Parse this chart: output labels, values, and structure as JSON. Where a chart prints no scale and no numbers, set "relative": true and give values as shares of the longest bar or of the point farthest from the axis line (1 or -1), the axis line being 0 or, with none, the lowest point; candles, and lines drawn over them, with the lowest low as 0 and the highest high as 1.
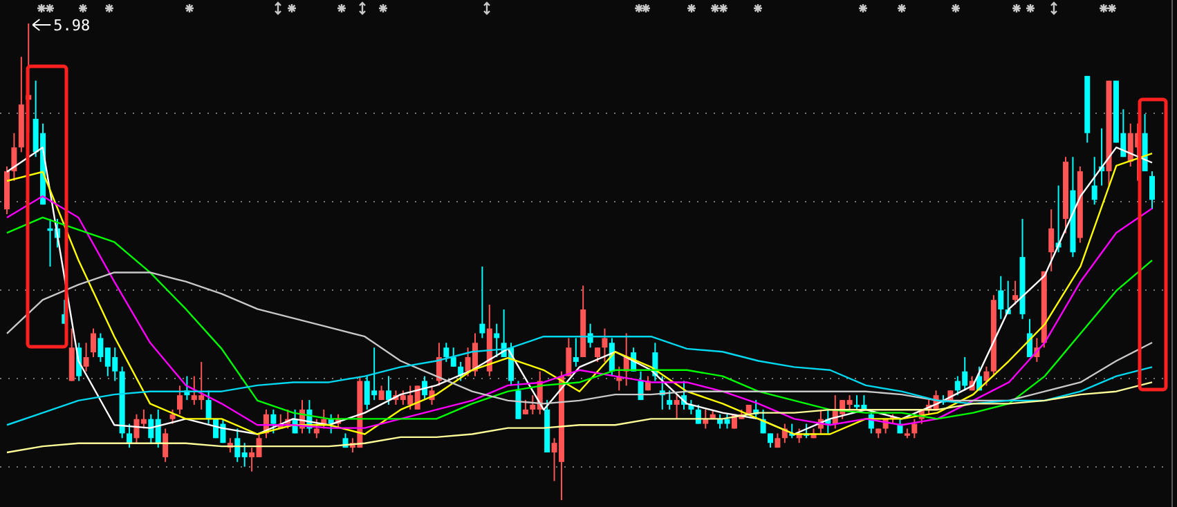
{
  "chart_data": [
    {
      "type": "candlestick",
      "relative": true,
      "grid": true,
      "categories": [
        null,
        null,
        null,
        null,
        null,
        null,
        null,
        null,
        null,
        null,
        null,
        null,
        null,
        null,
        null,
        null,
        null,
        null,
        null,
        null,
        null,
        null,
        null,
        null,
        null,
        null,
        null,
        null,
        null,
        null,
        null,
        null,
        null,
        null,
        null,
        null,
        null,
        null,
        null,
        null,
        null,
        null,
        null,
        null,
        null,
        null,
        null,
        null,
        null,
        null,
        null,
        null,
        null,
        null,
        null,
        null,
        null,
        null,
        null,
        null,
        null,
        null,
        null,
        null,
        null,
        null,
        null,
        null,
        null,
        null,
        null,
        null,
        null,
        null,
        null,
        null,
        null,
        null,
        null,
        null,
        null,
        null,
        null,
        null,
        null,
        null,
        null,
        null,
        null,
        null,
        null,
        null,
        null,
        null,
        null,
        null,
        null,
        null,
        null,
        null,
        null,
        null,
        null,
        null,
        null,
        null,
        null,
        null,
        null,
        null,
        null,
        null,
        null,
        null,
        null,
        null,
        null,
        null,
        null,
        null,
        null,
        null,
        null,
        null,
        null,
        null,
        null,
        null,
        null,
        null,
        null,
        null,
        null,
        null,
        null,
        null,
        null,
        null,
        null,
        null,
        null,
        null,
        null,
        null,
        null,
        null,
        null,
        null,
        null,
        null,
        null,
        null,
        null,
        null,
        null,
        null,
        null,
        null,
        null,
        null
      ],
      "ohlc": [
        [
          0.61,
          0.7,
          0.6,
          0.69
        ],
        [
          0.69,
          0.77,
          0.67,
          0.74
        ],
        [
          0.74,
          0.93,
          0.73,
          0.83
        ],
        [
          0.84,
          1,
          0.77,
          0.85
        ],
        [
          0.8,
          0.88,
          0.72,
          0.73
        ],
        [
          0.77,
          0.79,
          0.62,
          0.62
        ],
        [
          0.57,
          0.59,
          0.49,
          0.565
        ],
        [
          0.57,
          0.59,
          0.53,
          0.55
        ],
        [
          0.39,
          0.42,
          0.37,
          0.37
        ],
        [
          0.25,
          0.36,
          0.25,
          0.32
        ],
        [
          0.32,
          0.33,
          0.25,
          0.26
        ],
        [
          0.28,
          0.33,
          0.27,
          0.3
        ],
        [
          0.31,
          0.36,
          0.3,
          0.35
        ],
        [
          0.34,
          0.35,
          0.29,
          0.3
        ],
        [
          0.32,
          0.32,
          0.26,
          0.28
        ],
        [
          0.3,
          0.32,
          0.25,
          0.27
        ],
        [
          0.27,
          0.28,
          0.13,
          0.14
        ],
        [
          0.14,
          0.16,
          0.11,
          0.12
        ],
        [
          0.13,
          0.18,
          0.12,
          0.17
        ],
        [
          0.16,
          0.19,
          0.15,
          0.17
        ],
        [
          0.17,
          0.18,
          0.12,
          0.13
        ],
        [
          0.17,
          0.19,
          0.11,
          0.12
        ],
        [
          0.09,
          0.15,
          0.08,
          0.14
        ],
        [
          0.17,
          0.19,
          0.16,
          0.18
        ],
        [
          0.19,
          0.24,
          0.18,
          0.22
        ],
        [
          0.23,
          0.26,
          0.21,
          0.22
        ],
        [
          0.21,
          0.26,
          0.2,
          0.22
        ],
        [
          0.21,
          0.29,
          0.19,
          0.22
        ],
        [
          0.21,
          0.23,
          0.16,
          0.17
        ],
        [
          0.17,
          0.17,
          0.13,
          0.13
        ],
        [
          0.16,
          0.17,
          0.12,
          0.12
        ],
        [
          0.11,
          0.13,
          0.1,
          0.12
        ],
        [
          0.13,
          0.15,
          0.08,
          0.09
        ],
        [
          0.1,
          0.12,
          0.07,
          0.09
        ],
        [
          0.09,
          0.11,
          0.06,
          0.1
        ],
        [
          0.09,
          0.14,
          0.09,
          0.13
        ],
        [
          0.14,
          0.19,
          0.13,
          0.18
        ],
        [
          0.18,
          0.19,
          0.14,
          0.16
        ],
        [
          0.15,
          0.18,
          0.15,
          0.16
        ],
        [
          0.16,
          0.19,
          0.15,
          0.17
        ],
        [
          0.17,
          0.19,
          0.14,
          0.14
        ],
        [
          0.15,
          0.21,
          0.14,
          0.19
        ],
        [
          0.19,
          0.21,
          0.14,
          0.15
        ],
        [
          0.14,
          0.17,
          0.13,
          0.15
        ],
        [
          0.16,
          0.19,
          0.15,
          0.17
        ],
        [
          0.17,
          0.18,
          0.14,
          0.16
        ],
        [
          0.16,
          0.18,
          0.15,
          0.17
        ],
        [
          0.13,
          0.14,
          0.11,
          0.11
        ],
        [
          0.11,
          0.13,
          0.1,
          0.12
        ],
        [
          0.11,
          0.26,
          0.11,
          0.25
        ],
        [
          0.25,
          0.26,
          0.19,
          0.2
        ],
        [
          0.23,
          0.32,
          0.21,
          0.22
        ],
        [
          0.21,
          0.24,
          0.21,
          0.23
        ],
        [
          0.23,
          0.26,
          0.2,
          0.21
        ],
        [
          0.21,
          0.23,
          0.2,
          0.22
        ],
        [
          0.21,
          0.23,
          0.2,
          0.22
        ],
        [
          0.2,
          0.24,
          0.19,
          0.22
        ],
        [
          0.19,
          0.24,
          0.19,
          0.24
        ],
        [
          0.25,
          0.26,
          0.21,
          0.22
        ],
        [
          0.21,
          0.24,
          0.2,
          0.23
        ],
        [
          0.25,
          0.33,
          0.24,
          0.3
        ],
        [
          0.32,
          0.33,
          0.29,
          0.3
        ],
        [
          0.3,
          0.32,
          0.28,
          0.28
        ],
        [
          0.28,
          0.29,
          0.25,
          0.26
        ],
        [
          0.27,
          0.32,
          0.26,
          0.3
        ],
        [
          0.27,
          0.35,
          0.26,
          0.33
        ],
        [
          0.37,
          0.49,
          0.34,
          0.35
        ],
        [
          0.27,
          0.41,
          0.26,
          0.36
        ],
        [
          0.35,
          0.37,
          0.3,
          0.34
        ],
        [
          0.33,
          0.4,
          0.3,
          0.3
        ],
        [
          0.32,
          0.33,
          0.24,
          0.25
        ],
        [
          0.23,
          0.25,
          0.17,
          0.17
        ],
        [
          0.18,
          0.21,
          0.18,
          0.19
        ],
        [
          0.19,
          0.22,
          0.18,
          0.2
        ],
        [
          0.19,
          0.27,
          0.18,
          0.25
        ],
        [
          0.19,
          0.21,
          0.1,
          0.1
        ],
        [
          0.1,
          0.13,
          0.04,
          0.12
        ],
        [
          0.08,
          0.27,
          0,
          0.26
        ],
        [
          0.26,
          0.34,
          0.26,
          0.32
        ],
        [
          0.3,
          0.34,
          0.28,
          0.29
        ],
        [
          0.3,
          0.45,
          0.3,
          0.4
        ],
        [
          0.35,
          0.37,
          0.32,
          0.33
        ],
        [
          0.3,
          0.32,
          0.29,
          0.32
        ],
        [
          0.32,
          0.36,
          0.29,
          0.34
        ],
        [
          0.33,
          0.34,
          0.26,
          0.27
        ],
        [
          0.25,
          0.28,
          0.23,
          0.26
        ],
        [
          0.27,
          0.35,
          0.24,
          0.3
        ],
        [
          0.31,
          0.32,
          0.27,
          0.27
        ],
        [
          0.25,
          0.27,
          0.21,
          0.21
        ],
        [
          0.23,
          0.26,
          0.23,
          0.25
        ],
        [
          0.31,
          0.33,
          0.25,
          0.26
        ],
        [
          0.23,
          0.26,
          0.19,
          0.22
        ],
        [
          0.21,
          0.23,
          0.19,
          0.2
        ],
        [
          0.2,
          0.22,
          0.17,
          0.21
        ],
        [
          0.22,
          0.25,
          0.19,
          0.2
        ],
        [
          0.2,
          0.21,
          0.18,
          0.19
        ],
        [
          0.19,
          0.2,
          0.16,
          0.16
        ],
        [
          0.16,
          0.19,
          0.15,
          0.17
        ],
        [
          0.17,
          0.19,
          0.17,
          0.18
        ],
        [
          0.17,
          0.18,
          0.15,
          0.16
        ],
        [
          0.17,
          0.18,
          0.15,
          0.16
        ],
        [
          0.15,
          0.18,
          0.15,
          0.18
        ],
        [
          0.17,
          0.19,
          0.17,
          0.18
        ],
        [
          0.18,
          0.2,
          0.18,
          0.2
        ],
        [
          0.19,
          0.21,
          0.17,
          0.18
        ],
        [
          0.17,
          0.19,
          0.14,
          0.14
        ],
        [
          0.14,
          0.14,
          0.11,
          0.12
        ],
        [
          0.11,
          0.14,
          0.11,
          0.13
        ],
        [
          0.13,
          0.16,
          0.12,
          0.15
        ],
        [
          0.14,
          0.16,
          0.13,
          0.135
        ],
        [
          0.13,
          0.15,
          0.12,
          0.14
        ],
        [
          0.14,
          0.16,
          0.13,
          0.135
        ],
        [
          0.13,
          0.15,
          0.13,
          0.14
        ],
        [
          0.15,
          0.19,
          0.14,
          0.17
        ],
        [
          0.17,
          0.19,
          0.14,
          0.16
        ],
        [
          0.16,
          0.22,
          0.15,
          0.19
        ],
        [
          0.18,
          0.21,
          0.17,
          0.21
        ],
        [
          0.2,
          0.22,
          0.19,
          0.21
        ],
        [
          0.2,
          0.22,
          0.19,
          0.195
        ],
        [
          0.2,
          0.22,
          0.19,
          0.19
        ],
        [
          0.18,
          0.19,
          0.14,
          0.15
        ],
        [
          0.14,
          0.15,
          0.13,
          0.15
        ],
        [
          0.15,
          0.17,
          0.14,
          0.17
        ],
        [
          0.17,
          0.18,
          0.16,
          0.175
        ],
        [
          0.16,
          0.17,
          0.14,
          0.14
        ],
        [
          0.135,
          0.15,
          0.13,
          0.14
        ],
        [
          0.14,
          0.17,
          0.13,
          0.16
        ],
        [
          0.17,
          0.19,
          0.16,
          0.19
        ],
        [
          0.19,
          0.21,
          0.18,
          0.2
        ],
        [
          0.19,
          0.23,
          0.19,
          0.22
        ],
        [
          0.21,
          0.22,
          0.2,
          0.205
        ],
        [
          0.21,
          0.23,
          0.21,
          0.23
        ],
        [
          0.25,
          0.26,
          0.22,
          0.23
        ],
        [
          0.27,
          0.3,
          0.23,
          0.24
        ],
        [
          0.23,
          0.26,
          0.23,
          0.25
        ],
        [
          0.26,
          0.28,
          0.23,
          0.23
        ],
        [
          0.25,
          0.28,
          0.24,
          0.27
        ],
        [
          0.27,
          0.43,
          0.26,
          0.42
        ],
        [
          0.44,
          0.47,
          0.38,
          0.4
        ],
        [
          0.4,
          0.46,
          0.39,
          0.39
        ],
        [
          0.42,
          0.46,
          0.41,
          0.43
        ],
        [
          0.51,
          0.59,
          0.38,
          0.39
        ],
        [
          0.35,
          0.38,
          0.3,
          0.3
        ],
        [
          0.3,
          0.34,
          0.29,
          0.32
        ],
        [
          0.33,
          0.48,
          0.32,
          0.48
        ],
        [
          0.52,
          0.61,
          0.48,
          0.57
        ],
        [
          0.54,
          0.66,
          0.52,
          0.53
        ],
        [
          0.59,
          0.72,
          0.56,
          0.71
        ],
        [
          0.65,
          0.72,
          0.51,
          0.52
        ],
        [
          0.55,
          0.7,
          0.54,
          0.69
        ],
        [
          0.89,
          0.89,
          0.75,
          0.77
        ],
        [
          0.66,
          0.72,
          0.62,
          0.63
        ],
        [
          0.7,
          0.78,
          0.66,
          0.69
        ],
        [
          0.69,
          0.88,
          0.66,
          0.88
        ],
        [
          0.88,
          0.88,
          0.75,
          0.75
        ],
        [
          0.77,
          0.82,
          0.72,
          0.72
        ],
        [
          0.71,
          0.79,
          0.7,
          0.77
        ],
        [
          0.74,
          0.79,
          0.67,
          0.77
        ],
        [
          0.77,
          0.81,
          0.69,
          0.69
        ],
        [
          0.68,
          0.69,
          0.61,
          0.63
        ]
      ],
      "annotations": [
        "5.98"
      ]
    },
    {
      "type": "line",
      "relative": true,
      "categories": [
        null,
        null,
        null,
        null,
        null,
        null,
        null,
        null,
        null,
        null,
        null,
        null,
        null,
        null,
        null,
        null,
        null,
        null,
        null,
        null,
        null,
        null,
        null,
        null,
        null,
        null,
        null,
        null,
        null,
        null,
        null,
        null,
        null
      ],
      "series": [
        {
          "color": "#ffffff",
          "values": [
            0.92,
            1,
            0.3,
            0.09,
            0.08,
            0.11,
            0.08,
            0.06,
            0.11,
            0.09,
            0.13,
            0.19,
            0.22,
            0.27,
            0.34,
            0.14,
            0.28,
            0.33,
            0.27,
            0.16,
            0.13,
            0.11,
            0.06,
            0.11,
            0.14,
            0.11,
            0.16,
            0.22,
            0.47,
            0.58,
            0.84,
            1,
            0.95
          ]
        },
        {
          "color": "#ffff00",
          "values": [
            0.89,
            0.92,
            0.63,
            0.38,
            0.16,
            0.11,
            0.11,
            0.06,
            0.09,
            0.09,
            0.06,
            0.14,
            0.19,
            0.27,
            0.31,
            0.27,
            0.2,
            0.33,
            0.28,
            0.2,
            0.16,
            0.11,
            0.06,
            0.06,
            0.11,
            0.11,
            0.13,
            0.19,
            0.3,
            0.42,
            0.61,
            0.94,
            0.98
          ]
        },
        {
          "color": "#ff00ff",
          "values": [
            0.77,
            0.84,
            0.77,
            0.56,
            0.36,
            0.22,
            0.16,
            0.09,
            0.09,
            0.08,
            0.08,
            0.11,
            0.14,
            0.17,
            0.22,
            0.23,
            0.27,
            0.25,
            0.23,
            0.23,
            0.2,
            0.16,
            0.11,
            0.09,
            0.11,
            0.09,
            0.11,
            0.17,
            0.23,
            0.36,
            0.56,
            0.72,
            0.8
          ]
        },
        {
          "color": "#00ff00",
          "values": [
            0.72,
            0.77,
            0.73,
            0.69,
            0.59,
            0.47,
            0.34,
            0.17,
            0.13,
            0.11,
            0.11,
            0.11,
            0.11,
            0.16,
            0.2,
            0.22,
            0.23,
            0.27,
            0.27,
            0.27,
            0.25,
            0.2,
            0.17,
            0.14,
            0.13,
            0.13,
            0.11,
            0.13,
            0.16,
            0.25,
            0.39,
            0.53,
            0.63
          ]
        },
        {
          "color": "#c8c8c8",
          "values": [
            0.39,
            0.5,
            0.55,
            0.59,
            0.59,
            0.56,
            0.52,
            0.47,
            0.44,
            0.41,
            0.38,
            0.3,
            0.25,
            0.2,
            0.17,
            0.16,
            0.17,
            0.19,
            0.19,
            0.2,
            0.2,
            0.2,
            0.2,
            0.2,
            0.2,
            0.19,
            0.17,
            0.17,
            0.17,
            0.2,
            0.23,
            0.3,
            0.36
          ]
        },
        {
          "color": "#00d8f0",
          "values": [
            0.09,
            0.13,
            0.17,
            0.19,
            0.2,
            0.2,
            0.2,
            0.22,
            0.23,
            0.23,
            0.25,
            0.28,
            0.3,
            0.33,
            0.34,
            0.38,
            0.38,
            0.38,
            0.38,
            0.34,
            0.33,
            0.3,
            0.28,
            0.27,
            0.22,
            0.2,
            0.17,
            0.16,
            0.17,
            0.17,
            0.2,
            0.25,
            0.28
          ]
        },
        {
          "color": "#ffff99",
          "values": [
            0,
            0.02,
            0.03,
            0.03,
            0.03,
            0.03,
            0.02,
            0.02,
            0.02,
            0.02,
            0.03,
            0.05,
            0.05,
            0.06,
            0.08,
            0.08,
            0.09,
            0.09,
            0.11,
            0.11,
            0.11,
            0.13,
            0.13,
            0.14,
            0.14,
            0.14,
            0.14,
            0.16,
            0.16,
            0.17,
            0.19,
            0.2,
            0.23
          ]
        }
      ]
    }
  ]
}
